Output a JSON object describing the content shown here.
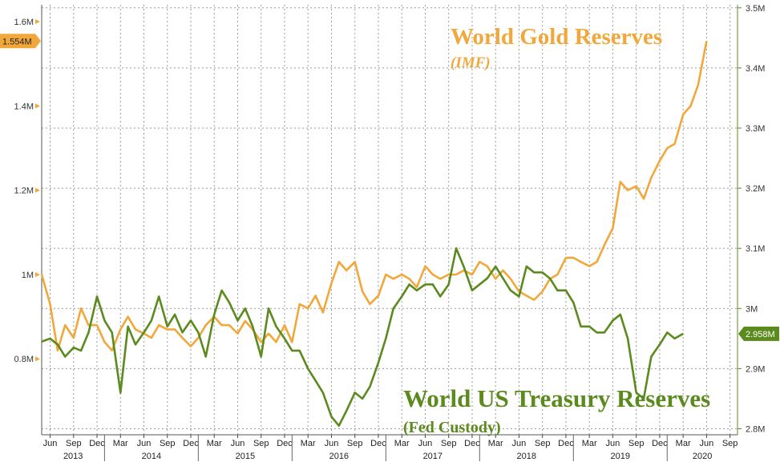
{
  "chart_data": {
    "type": "line",
    "title": "World Gold Reserves",
    "subtitle": "(IMF)",
    "x_month_labels": [
      "Jun",
      "Sep",
      "Dec",
      "Mar",
      "Jun",
      "Sep",
      "Dec",
      "Mar",
      "Jun",
      "Sep",
      "Dec",
      "Mar",
      "Jun",
      "Sep",
      "Dec",
      "Mar",
      "Jun",
      "Sep",
      "Dec",
      "Mar",
      "Jun",
      "Sep",
      "Dec",
      "Mar",
      "Jun",
      "Sep",
      "Dec",
      "Mar",
      "Jun",
      "Sep"
    ],
    "x_year_labels": [
      "2013",
      "2014",
      "2015",
      "2016",
      "2017",
      "2018",
      "2019",
      "2020"
    ],
    "x_range": [
      2013.33,
      2020.75
    ],
    "y_left": {
      "range": [
        0.62,
        1.64
      ],
      "ticks": [
        0.8,
        1.0,
        1.2,
        1.4,
        1.6
      ],
      "tick_labels": [
        "0.8M",
        "1M",
        "1.2M",
        "1.4M",
        "1.6M"
      ],
      "last_value_label": "1.554M",
      "last_value": 1.554,
      "color": "#f2a73a"
    },
    "y_right": {
      "range": [
        2.79,
        3.505
      ],
      "ticks": [
        2.8,
        2.9,
        3.0,
        3.1,
        3.2,
        3.3,
        3.4,
        3.5
      ],
      "tick_labels": [
        "2.8M",
        "2.9M",
        "3M",
        "3.1M",
        "3.2M",
        "3.3M",
        "3.4M",
        "3.5M"
      ],
      "last_value_label": "2.958M",
      "last_value": 2.958,
      "color": "#5b8a1e"
    },
    "series": [
      {
        "name": "World Gold Reserves",
        "subtitle": "(IMF)",
        "axis": "left",
        "color": "#f2a73a",
        "points": [
          [
            2013.33,
            1.0
          ],
          [
            2013.42,
            0.93
          ],
          [
            2013.5,
            0.82
          ],
          [
            2013.58,
            0.88
          ],
          [
            2013.67,
            0.85
          ],
          [
            2013.75,
            0.92
          ],
          [
            2013.83,
            0.88
          ],
          [
            2013.92,
            0.88
          ],
          [
            2014.0,
            0.84
          ],
          [
            2014.08,
            0.82
          ],
          [
            2014.17,
            0.87
          ],
          [
            2014.25,
            0.9
          ],
          [
            2014.33,
            0.87
          ],
          [
            2014.42,
            0.86
          ],
          [
            2014.5,
            0.85
          ],
          [
            2014.58,
            0.88
          ],
          [
            2014.67,
            0.87
          ],
          [
            2014.75,
            0.87
          ],
          [
            2014.83,
            0.85
          ],
          [
            2014.92,
            0.83
          ],
          [
            2015.0,
            0.85
          ],
          [
            2015.08,
            0.88
          ],
          [
            2015.17,
            0.9
          ],
          [
            2015.25,
            0.88
          ],
          [
            2015.33,
            0.88
          ],
          [
            2015.42,
            0.86
          ],
          [
            2015.5,
            0.89
          ],
          [
            2015.58,
            0.87
          ],
          [
            2015.67,
            0.84
          ],
          [
            2015.75,
            0.86
          ],
          [
            2015.83,
            0.84
          ],
          [
            2015.92,
            0.88
          ],
          [
            2016.0,
            0.84
          ],
          [
            2016.08,
            0.93
          ],
          [
            2016.17,
            0.92
          ],
          [
            2016.25,
            0.95
          ],
          [
            2016.33,
            0.91
          ],
          [
            2016.42,
            0.98
          ],
          [
            2016.5,
            1.03
          ],
          [
            2016.58,
            1.01
          ],
          [
            2016.67,
            1.03
          ],
          [
            2016.75,
            0.96
          ],
          [
            2016.83,
            0.93
          ],
          [
            2016.92,
            0.95
          ],
          [
            2017.0,
            1.0
          ],
          [
            2017.08,
            0.99
          ],
          [
            2017.17,
            1.0
          ],
          [
            2017.25,
            0.99
          ],
          [
            2017.33,
            0.97
          ],
          [
            2017.42,
            1.02
          ],
          [
            2017.5,
            1.0
          ],
          [
            2017.58,
            0.99
          ],
          [
            2017.67,
            1.0
          ],
          [
            2017.75,
            1.0
          ],
          [
            2017.83,
            1.01
          ],
          [
            2017.92,
            1.0
          ],
          [
            2018.0,
            1.03
          ],
          [
            2018.08,
            1.02
          ],
          [
            2018.17,
            0.99
          ],
          [
            2018.25,
            1.01
          ],
          [
            2018.33,
            0.99
          ],
          [
            2018.42,
            0.96
          ],
          [
            2018.5,
            0.95
          ],
          [
            2018.58,
            0.94
          ],
          [
            2018.67,
            0.96
          ],
          [
            2018.75,
            0.99
          ],
          [
            2018.83,
            1.0
          ],
          [
            2018.92,
            1.04
          ],
          [
            2019.0,
            1.04
          ],
          [
            2019.08,
            1.03
          ],
          [
            2019.17,
            1.02
          ],
          [
            2019.25,
            1.03
          ],
          [
            2019.33,
            1.07
          ],
          [
            2019.42,
            1.11
          ],
          [
            2019.5,
            1.22
          ],
          [
            2019.58,
            1.2
          ],
          [
            2019.67,
            1.21
          ],
          [
            2019.75,
            1.18
          ],
          [
            2019.83,
            1.23
          ],
          [
            2019.92,
            1.27
          ],
          [
            2020.0,
            1.3
          ],
          [
            2020.08,
            1.31
          ],
          [
            2020.17,
            1.38
          ],
          [
            2020.25,
            1.4
          ],
          [
            2020.33,
            1.45
          ],
          [
            2020.42,
            1.554
          ]
        ]
      },
      {
        "name": "World US Treasury Reserves",
        "subtitle": "(Fed Custody)",
        "axis": "right",
        "color": "#5b8a1e",
        "points": [
          [
            2013.33,
            2.945
          ],
          [
            2013.42,
            2.95
          ],
          [
            2013.5,
            2.94
          ],
          [
            2013.58,
            2.92
          ],
          [
            2013.67,
            2.935
          ],
          [
            2013.75,
            2.93
          ],
          [
            2013.83,
            2.96
          ],
          [
            2013.92,
            3.02
          ],
          [
            2014.0,
            2.98
          ],
          [
            2014.08,
            2.96
          ],
          [
            2014.17,
            2.86
          ],
          [
            2014.25,
            2.97
          ],
          [
            2014.33,
            2.94
          ],
          [
            2014.42,
            2.96
          ],
          [
            2014.5,
            2.98
          ],
          [
            2014.58,
            3.02
          ],
          [
            2014.67,
            2.97
          ],
          [
            2014.75,
            2.99
          ],
          [
            2014.83,
            2.96
          ],
          [
            2014.92,
            2.98
          ],
          [
            2015.0,
            2.96
          ],
          [
            2015.08,
            2.92
          ],
          [
            2015.17,
            2.99
          ],
          [
            2015.25,
            3.03
          ],
          [
            2015.33,
            3.01
          ],
          [
            2015.42,
            2.98
          ],
          [
            2015.5,
            3.0
          ],
          [
            2015.58,
            2.97
          ],
          [
            2015.67,
            2.92
          ],
          [
            2015.75,
            3.0
          ],
          [
            2015.83,
            2.97
          ],
          [
            2015.92,
            2.95
          ],
          [
            2016.0,
            2.93
          ],
          [
            2016.08,
            2.93
          ],
          [
            2016.17,
            2.9
          ],
          [
            2016.25,
            2.88
          ],
          [
            2016.33,
            2.86
          ],
          [
            2016.42,
            2.82
          ],
          [
            2016.5,
            2.805
          ],
          [
            2016.58,
            2.83
          ],
          [
            2016.67,
            2.86
          ],
          [
            2016.75,
            2.85
          ],
          [
            2016.83,
            2.87
          ],
          [
            2016.92,
            2.91
          ],
          [
            2017.0,
            2.95
          ],
          [
            2017.08,
            3.0
          ],
          [
            2017.17,
            3.02
          ],
          [
            2017.25,
            3.04
          ],
          [
            2017.33,
            3.03
          ],
          [
            2017.42,
            3.04
          ],
          [
            2017.5,
            3.04
          ],
          [
            2017.58,
            3.02
          ],
          [
            2017.67,
            3.04
          ],
          [
            2017.75,
            3.1
          ],
          [
            2017.83,
            3.07
          ],
          [
            2017.92,
            3.03
          ],
          [
            2018.0,
            3.04
          ],
          [
            2018.08,
            3.05
          ],
          [
            2018.17,
            3.07
          ],
          [
            2018.25,
            3.05
          ],
          [
            2018.33,
            3.03
          ],
          [
            2018.42,
            3.02
          ],
          [
            2018.5,
            3.07
          ],
          [
            2018.58,
            3.06
          ],
          [
            2018.67,
            3.06
          ],
          [
            2018.75,
            3.05
          ],
          [
            2018.83,
            3.03
          ],
          [
            2018.92,
            3.03
          ],
          [
            2019.0,
            3.01
          ],
          [
            2019.08,
            2.97
          ],
          [
            2019.17,
            2.97
          ],
          [
            2019.25,
            2.96
          ],
          [
            2019.33,
            2.96
          ],
          [
            2019.42,
            2.98
          ],
          [
            2019.5,
            2.99
          ],
          [
            2019.58,
            2.95
          ],
          [
            2019.67,
            2.86
          ],
          [
            2019.75,
            2.85
          ],
          [
            2019.83,
            2.92
          ],
          [
            2019.92,
            2.94
          ],
          [
            2020.0,
            2.96
          ],
          [
            2020.08,
            2.95
          ],
          [
            2020.17,
            2.958
          ]
        ]
      }
    ],
    "labels": {
      "gold_title": "World Gold Reserves",
      "gold_subtitle": "(IMF)",
      "treasury_title": "World US Treasury Reserves",
      "treasury_subtitle": "(Fed Custody)"
    }
  }
}
